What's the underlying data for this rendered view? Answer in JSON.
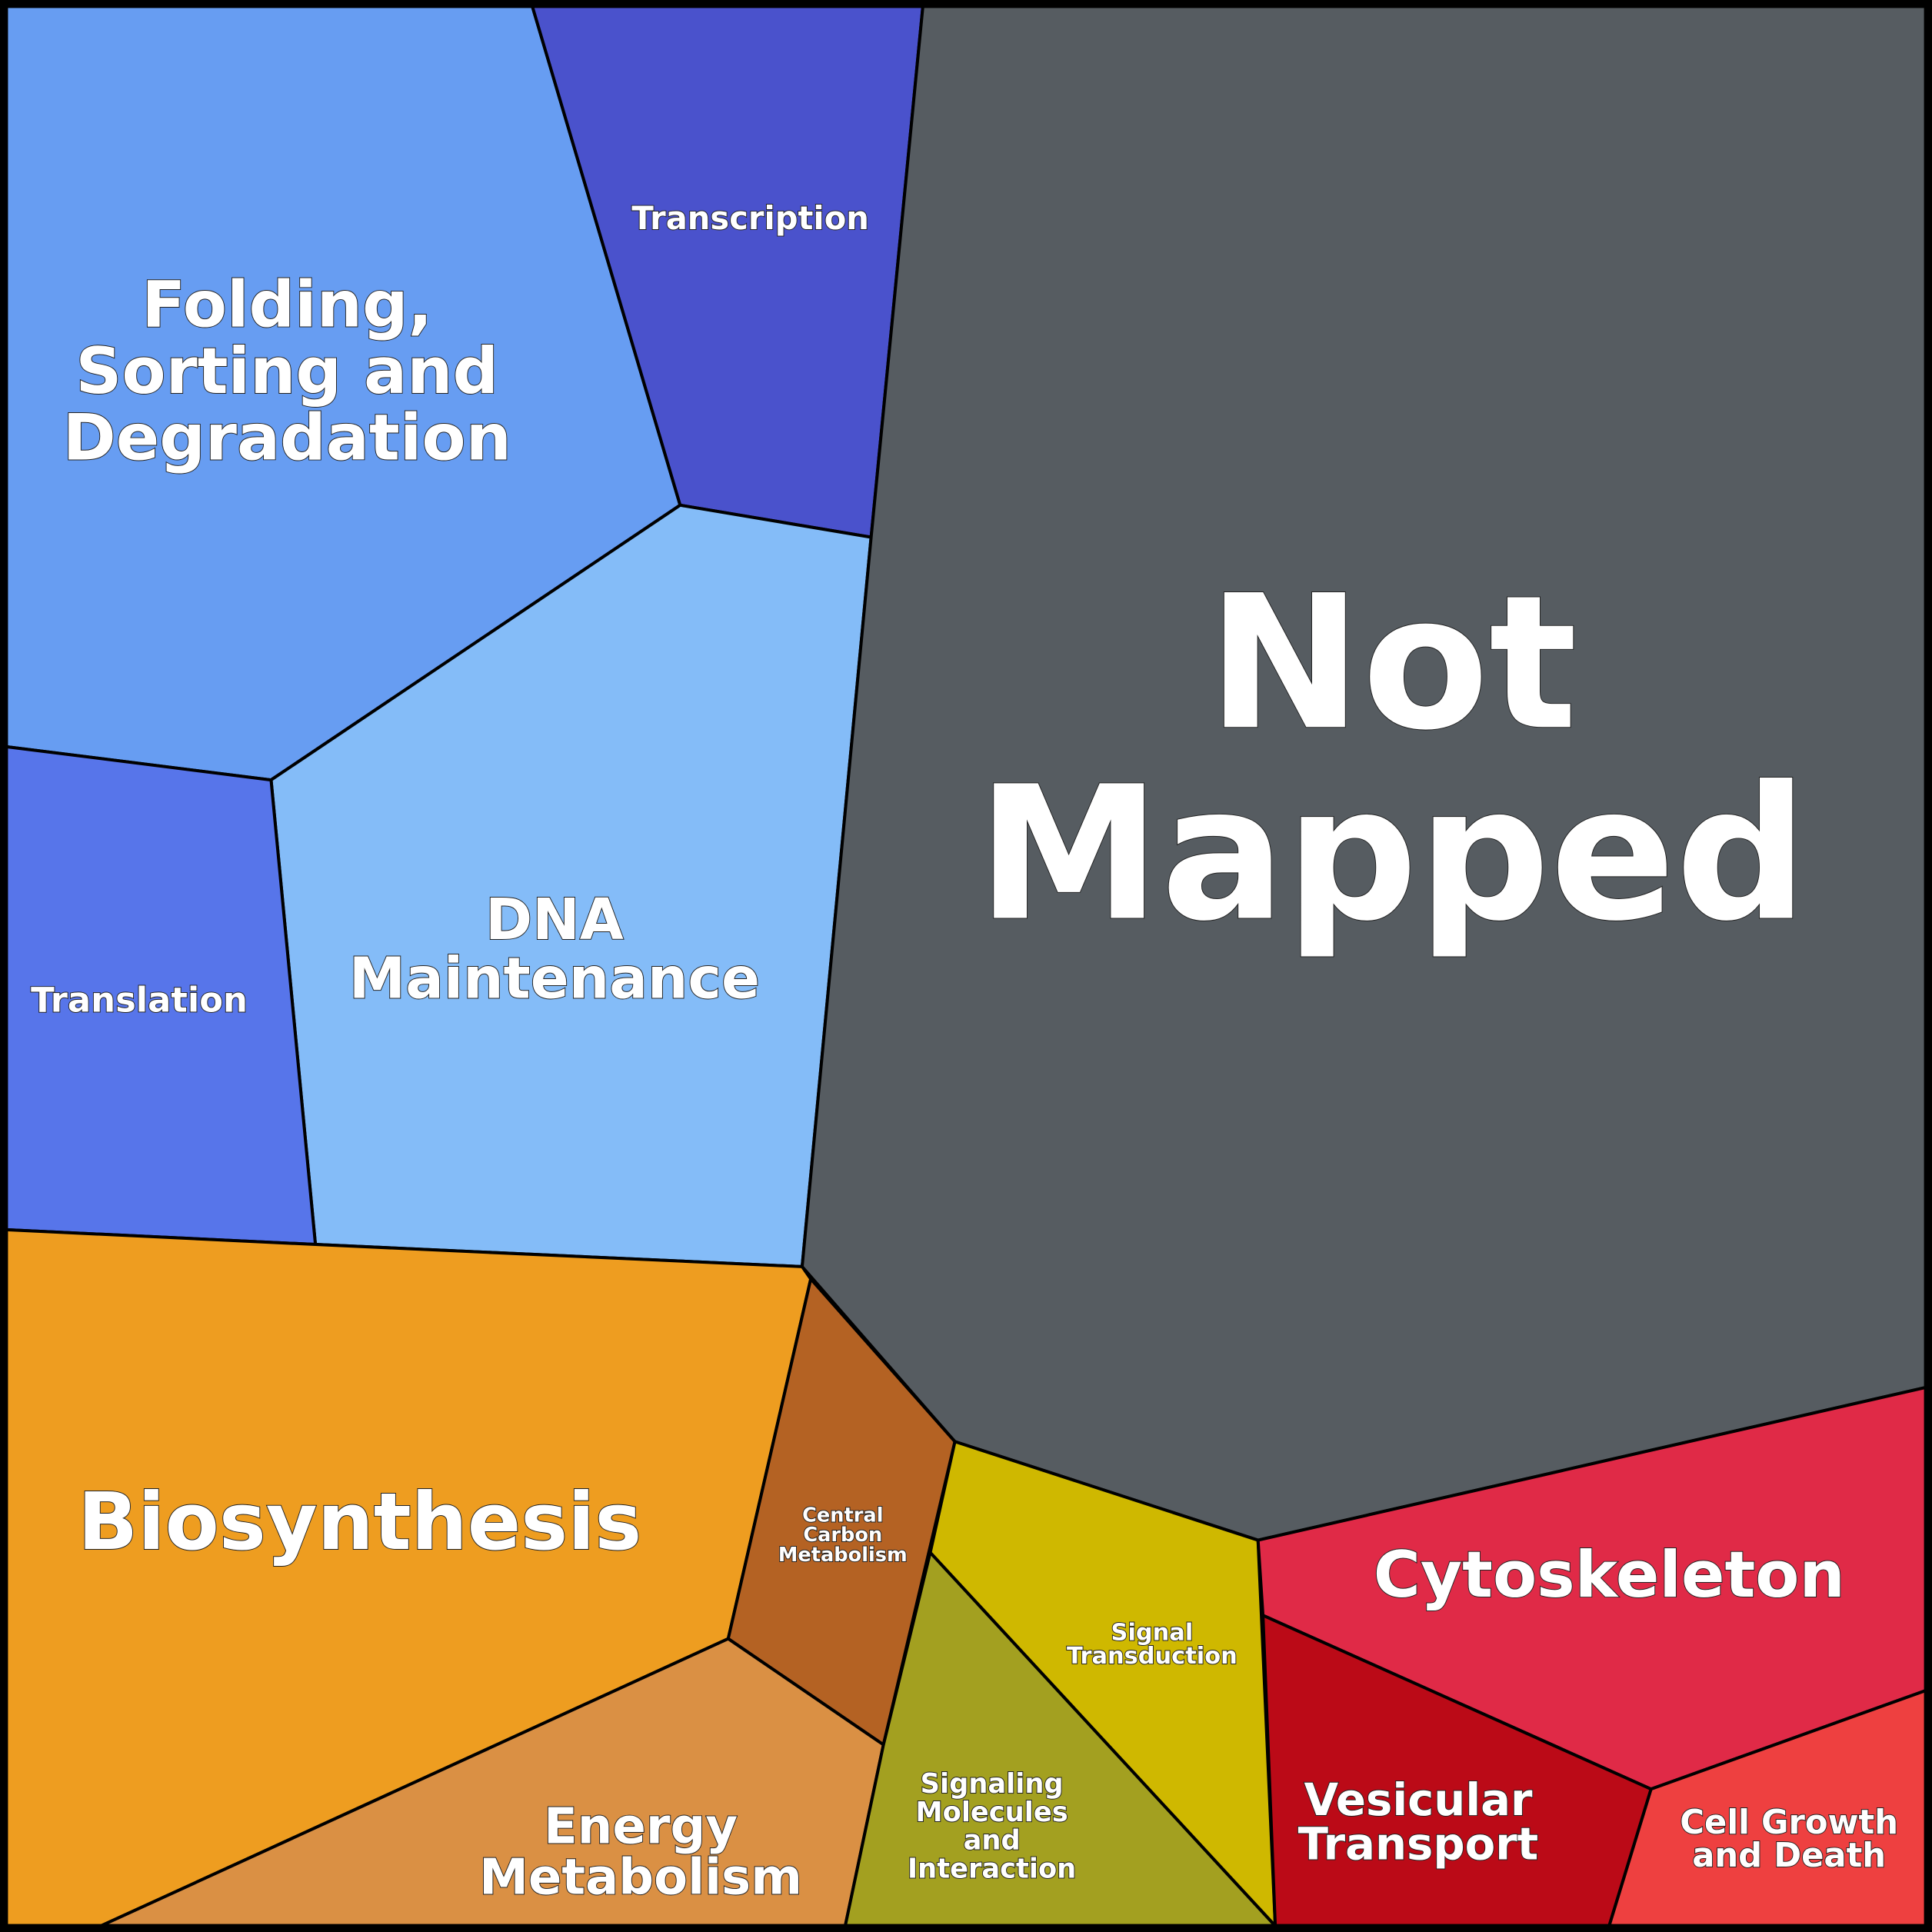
{
  "cells": [
    {
      "label_lines": [
        "Folding,",
        "Sorting and",
        "Degradation"
      ]
    },
    {
      "label_lines": [
        "Transcription"
      ]
    },
    {
      "label_lines": [
        "DNA",
        "Maintenance"
      ]
    },
    {
      "label_lines": [
        "Translation"
      ]
    },
    {
      "label_lines": [
        "Not",
        "Mapped"
      ]
    },
    {
      "label_lines": [
        "Biosynthesis"
      ]
    },
    {
      "label_lines": [
        "Central",
        "Carbon",
        "Metabolism"
      ]
    },
    {
      "label_lines": [
        "Energy",
        "Metabolism"
      ]
    },
    {
      "label_lines": [
        "Signaling",
        "Molecules",
        "and",
        "Interaction"
      ]
    },
    {
      "label_lines": [
        "Signal",
        "Transduction"
      ]
    },
    {
      "label_lines": [
        "Cytoskeleton"
      ]
    },
    {
      "label_lines": [
        "Vesicular",
        "Transport"
      ]
    },
    {
      "label_lines": [
        "Cell Growth",
        "and Death"
      ]
    }
  ]
}
